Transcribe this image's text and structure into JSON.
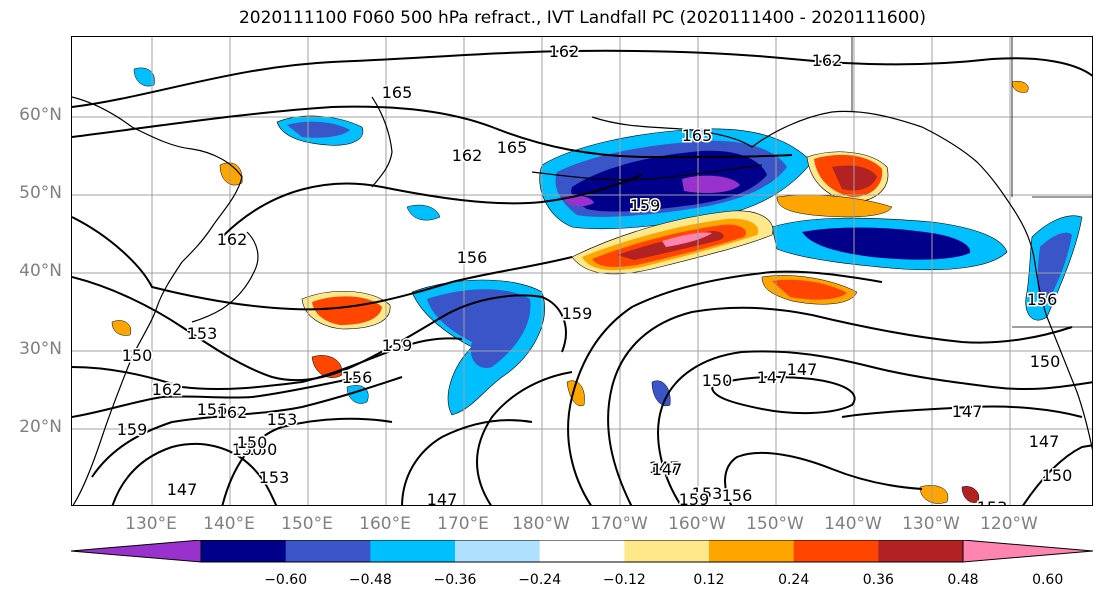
{
  "title": "2020111100 F060 500 hPa refract., IVT Landfall PC (2020111400 - 2020111600)",
  "lat_ticks": [
    "60°N",
    "50°N",
    "40°N",
    "30°N",
    "20°N"
  ],
  "lon_ticks": [
    "130°E",
    "140°E",
    "150°E",
    "160°E",
    "170°E",
    "180°W",
    "170°W",
    "160°W",
    "150°W",
    "140°W",
    "130°W",
    "120°W"
  ],
  "colorbar": {
    "ticks": [
      "−0.60",
      "−0.48",
      "−0.36",
      "−0.24",
      "−0.12",
      "0.12",
      "0.24",
      "0.36",
      "0.48",
      "0.60"
    ],
    "colors": [
      "#9932cc",
      "#00008b",
      "#3a55c8",
      "#00bfff",
      "#b0e0ff",
      "#ffffff",
      "#ffe88a",
      "#ffa500",
      "#ff4500",
      "#b22222",
      "#ff85b0"
    ]
  },
  "contour_labels": [
    "162",
    "162",
    "165",
    "165",
    "162",
    "165",
    "162",
    "159",
    "156",
    "153",
    "150",
    "162",
    "159",
    "156",
    "153",
    "150",
    "153",
    "147",
    "159",
    "159",
    "150",
    "147",
    "147",
    "150",
    "147",
    "147",
    "153",
    "156",
    "147",
    "150",
    "147",
    "153",
    "159",
    "156",
    "162",
    "156",
    "150",
    "147",
    "150"
  ]
}
